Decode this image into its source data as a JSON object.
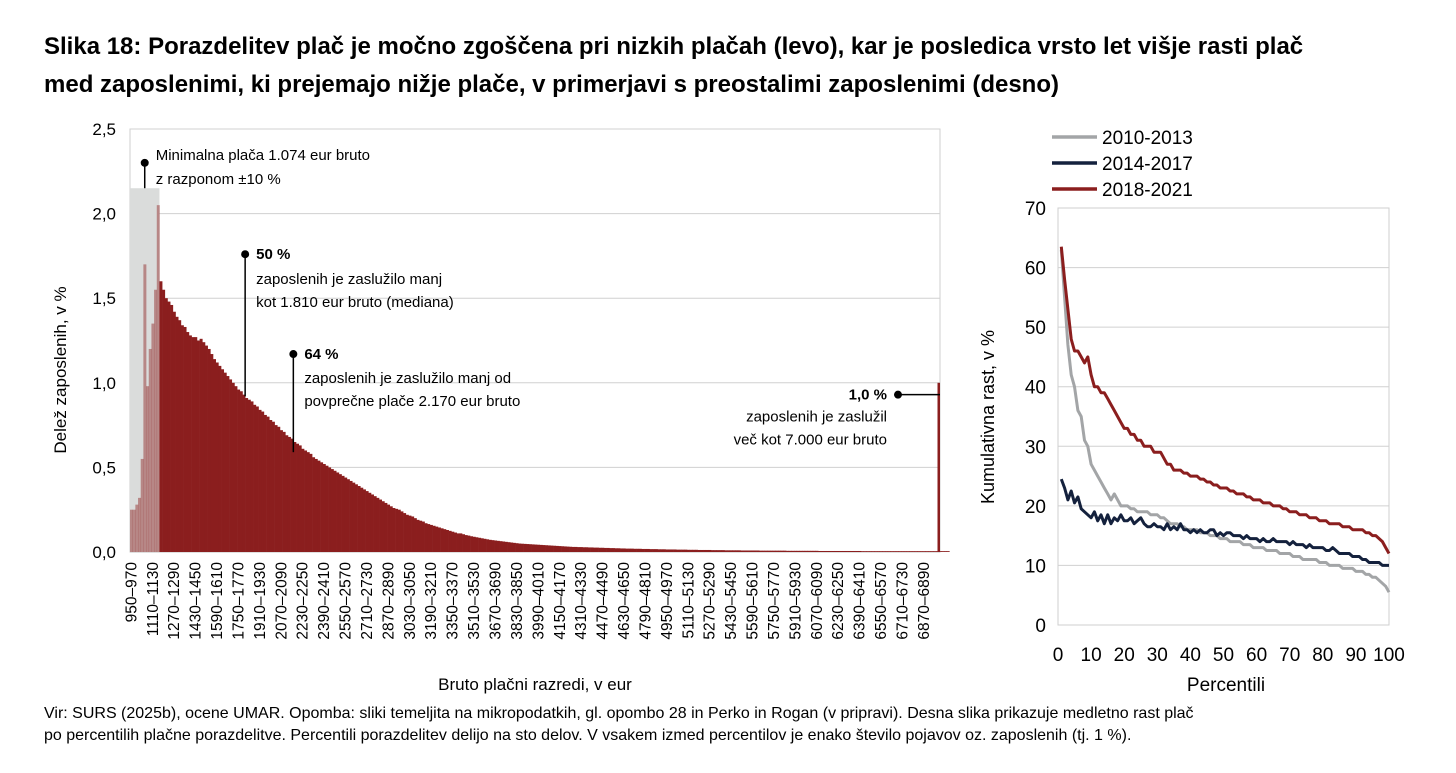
{
  "title": {
    "line1": "Slika 18: Porazdelitev plač je močno zgoščena pri nizkih plačah (levo), kar je posledica vrsto let višje rasti plač",
    "line2": "med zaposlenimi, ki prejemajo nižje plače, v primerjavi s preostalimi zaposlenimi (desno)"
  },
  "footnote": {
    "line1": "Vir: SURS (2025b), ocene UMAR. Opomba: sliki temeljita na mikropodatkih, gl. opombo 28 in Perko in Rogan (v pripravi). Desna slika prikazuje medletno rast plač",
    "line2": "po percentilih plačne porazdelitve. Percentili porazdelitev delijo na sto delov. V vsakem izmed percentilov je enako število pojavov oz. zaposlenih (tj. 1 %)."
  },
  "colors": {
    "bar": "#8b1e1e",
    "minwage_band": "#dadcdb",
    "series": [
      "#a3a5a7",
      "#14213d",
      "#8b1e1e"
    ],
    "grid": "#d0d0d0"
  },
  "chart_data": [
    {
      "type": "bar",
      "title": "",
      "xlabel": "Bruto plačni razredi, v eur",
      "ylabel": "Delež zaposlenih, v %",
      "ylim": [
        0,
        2.5
      ],
      "yticks": [
        "0,0",
        "0,5",
        "1,0",
        "1,5",
        "2,0",
        "2,5"
      ],
      "ytick_values": [
        0,
        0.5,
        1.0,
        1.5,
        2.0,
        2.5
      ],
      "x_start": 950,
      "x_step": 20,
      "x_end": 7000,
      "x_tick_labels": [
        "950–970",
        "1110–1130",
        "1270–1290",
        "1430–1450",
        "1590–1610",
        "1750–1770",
        "1910–1930",
        "2070–2090",
        "2230–2250",
        "2390–2410",
        "2550–2570",
        "2710–2730",
        "2870–2890",
        "3030–3050",
        "3190–3210",
        "3350–3370",
        "3510–3530",
        "3670–3690",
        "3830–3850",
        "3990–4010",
        "4150–4170",
        "4310–4330",
        "4470–4490",
        "4630–4650",
        "4790–4810",
        "4950–4970",
        "5110–5130",
        "5270–5290",
        "5430–5450",
        "5590–5610",
        "5750–5770",
        "5910–5930",
        "6070–6090",
        "6230–6250",
        "6390–6410",
        "6550–6570",
        "6710–6730",
        "6870–6890"
      ],
      "values": [
        0.25,
        0.25,
        0.28,
        0.32,
        0.55,
        1.7,
        0.98,
        1.2,
        1.35,
        1.55,
        2.05,
        1.6,
        1.55,
        1.5,
        1.48,
        1.46,
        1.42,
        1.39,
        1.37,
        1.34,
        1.33,
        1.3,
        1.28,
        1.27,
        1.27,
        1.25,
        1.26,
        1.24,
        1.22,
        1.2,
        1.17,
        1.14,
        1.12,
        1.1,
        1.08,
        1.06,
        1.04,
        1.02,
        1.0,
        0.98,
        0.96,
        0.95,
        0.93,
        0.91,
        0.9,
        0.89,
        0.87,
        0.86,
        0.84,
        0.83,
        0.81,
        0.8,
        0.78,
        0.77,
        0.75,
        0.74,
        0.72,
        0.71,
        0.69,
        0.68,
        0.67,
        0.65,
        0.64,
        0.63,
        0.61,
        0.6,
        0.59,
        0.58,
        0.56,
        0.55,
        0.54,
        0.53,
        0.52,
        0.51,
        0.5,
        0.49,
        0.48,
        0.47,
        0.46,
        0.45,
        0.44,
        0.43,
        0.42,
        0.41,
        0.4,
        0.39,
        0.38,
        0.37,
        0.36,
        0.35,
        0.34,
        0.33,
        0.32,
        0.31,
        0.3,
        0.29,
        0.28,
        0.27,
        0.26,
        0.255,
        0.25,
        0.24,
        0.23,
        0.22,
        0.215,
        0.21,
        0.2,
        0.19,
        0.185,
        0.18,
        0.17,
        0.165,
        0.16,
        0.155,
        0.15,
        0.145,
        0.14,
        0.135,
        0.13,
        0.125,
        0.12,
        0.115,
        0.11,
        0.11,
        0.105,
        0.1,
        0.097,
        0.093,
        0.09,
        0.087,
        0.084,
        0.081,
        0.078,
        0.075,
        0.072,
        0.07,
        0.068,
        0.066,
        0.064,
        0.062,
        0.06,
        0.058,
        0.056,
        0.054,
        0.052,
        0.05,
        0.049,
        0.048,
        0.047,
        0.046,
        0.045,
        0.044,
        0.043,
        0.042,
        0.041,
        0.04,
        0.039,
        0.038,
        0.037,
        0.036,
        0.035,
        0.034,
        0.033,
        0.032,
        0.031,
        0.03,
        0.03,
        0.029,
        0.029,
        0.028,
        0.028,
        0.027,
        0.027,
        0.026,
        0.026,
        0.025,
        0.025,
        0.024,
        0.024,
        0.023,
        0.023,
        0.022,
        0.022,
        0.021,
        0.021,
        0.02,
        0.02,
        0.02,
        0.019,
        0.019,
        0.019,
        0.018,
        0.018,
        0.018,
        0.017,
        0.017,
        0.017,
        0.016,
        0.016,
        0.016,
        0.015,
        0.015,
        0.015,
        0.015,
        0.014,
        0.014,
        0.014,
        0.014,
        0.013,
        0.013,
        0.013,
        0.013,
        0.012,
        0.012,
        0.012,
        0.012,
        0.012,
        0.011,
        0.011,
        0.011,
        0.011,
        0.011,
        0.01,
        0.01,
        0.01,
        0.01,
        0.01,
        0.01,
        0.009,
        0.009,
        0.009,
        0.009,
        0.009,
        0.009,
        0.009,
        0.008,
        0.008,
        0.008,
        0.008,
        0.008,
        0.008,
        0.008,
        0.008,
        0.008,
        0.008,
        0.007,
        0.007,
        0.007,
        0.007,
        0.007,
        0.007,
        0.007,
        0.007,
        0.007,
        0.007,
        0.007,
        0.007,
        0.006,
        0.006,
        0.006,
        0.006,
        0.006,
        0.006,
        0.006,
        0.006,
        0.006,
        0.006,
        0.006,
        0.006,
        0.006,
        0.006,
        0.006,
        0.006,
        0.005,
        0.005,
        0.005,
        0.005,
        0.005,
        0.005,
        0.005,
        0.005,
        0.005,
        0.005,
        0.005,
        0.005,
        0.005,
        0.005,
        0.005,
        0.005,
        0.005,
        0.005,
        0.005,
        0.005,
        0.005,
        0.005,
        0.005,
        0.005,
        0.005,
        0.005,
        0.005,
        0.005,
        0.005,
        0.005,
        0.005,
        0.005,
        0.005
      ],
      "last_bar_label": "7000+",
      "last_bar_value": 1.0,
      "minwage_band": {
        "from": 950,
        "to": 1170,
        "label_line1": "Minimalna plača 1.074 eur bruto",
        "label_line2": "z razponom ±10 %"
      },
      "annotations": [
        {
          "x": 1810,
          "y": 1.76,
          "bold": "50 %",
          "line1": "zaposlenih  je zaslužilo manj",
          "line2": "kot 1.810 eur bruto (mediana)"
        },
        {
          "x": 2170,
          "y": 1.17,
          "bold": "64 %",
          "line1": "zaposlenih je zaslužilo manj od",
          "line2": "povprečne plače 2.170 eur bruto"
        },
        {
          "x": 7000,
          "y": 0.93,
          "bold": "1,0 %",
          "line1": "zaposlenih je zaslužil",
          "line2": "več kot 7.000 eur bruto"
        }
      ]
    },
    {
      "type": "line",
      "title": "",
      "xlabel": "Percentili",
      "ylabel": "Kumulativna rast, v %",
      "xlim": [
        0,
        100
      ],
      "ylim": [
        0,
        70
      ],
      "xticks": [
        "0",
        "10",
        "20",
        "30",
        "40",
        "50",
        "60",
        "70",
        "80",
        "90",
        "100"
      ],
      "xtick_values": [
        0,
        10,
        20,
        30,
        40,
        50,
        60,
        70,
        80,
        90,
        100
      ],
      "yticks": [
        "0",
        "10",
        "20",
        "30",
        "40",
        "50",
        "60",
        "70"
      ],
      "ytick_values": [
        0,
        10,
        20,
        30,
        40,
        50,
        60,
        70
      ],
      "legend_position": "top-left",
      "x": [
        1,
        2,
        3,
        4,
        5,
        6,
        7,
        8,
        9,
        10,
        11,
        12,
        13,
        14,
        15,
        16,
        17,
        18,
        19,
        20,
        21,
        22,
        23,
        24,
        25,
        26,
        27,
        28,
        29,
        30,
        31,
        32,
        33,
        34,
        35,
        36,
        37,
        38,
        39,
        40,
        41,
        42,
        43,
        44,
        45,
        46,
        47,
        48,
        49,
        50,
        51,
        52,
        53,
        54,
        55,
        56,
        57,
        58,
        59,
        60,
        61,
        62,
        63,
        64,
        65,
        66,
        67,
        68,
        69,
        70,
        71,
        72,
        73,
        74,
        75,
        76,
        77,
        78,
        79,
        80,
        81,
        82,
        83,
        84,
        85,
        86,
        87,
        88,
        89,
        90,
        91,
        92,
        93,
        94,
        95,
        96,
        97,
        98,
        99,
        100
      ],
      "series": [
        {
          "name": "2010-2013",
          "values": [
            63,
            55,
            47,
            42,
            40,
            36,
            35,
            31,
            30,
            27,
            26,
            25,
            24,
            23,
            22,
            21,
            22,
            21,
            20,
            20,
            20,
            19.5,
            19.5,
            19,
            19,
            19,
            19,
            18.5,
            18.5,
            18.5,
            18,
            18,
            17.5,
            17,
            17,
            17,
            16.5,
            16.5,
            16,
            16,
            16,
            16,
            15.5,
            15.5,
            15.5,
            15,
            15,
            15,
            14.5,
            14.5,
            14.5,
            14,
            14,
            14,
            14,
            13.5,
            13.5,
            13.5,
            13,
            13,
            13,
            13,
            12.5,
            12.5,
            12.5,
            12.5,
            12,
            12,
            12,
            12,
            11.5,
            11.5,
            11.5,
            11,
            11,
            11,
            11,
            11,
            10.5,
            10.5,
            10.5,
            10,
            10,
            10,
            10,
            9.5,
            9.5,
            9.5,
            9.5,
            9,
            9,
            9,
            8.5,
            8.5,
            8,
            8,
            7.5,
            7,
            6.5,
            5.5
          ]
        },
        {
          "name": "2014-2017",
          "values": [
            24.5,
            23,
            21,
            22.5,
            20.5,
            21.5,
            19.5,
            19,
            18.5,
            18,
            19,
            17.5,
            18.5,
            17,
            18.5,
            17,
            18,
            17.5,
            18.5,
            17.5,
            17.5,
            18,
            17,
            17.5,
            18,
            17,
            16.5,
            16.5,
            17,
            16.5,
            16.5,
            16,
            17,
            16,
            16.5,
            16,
            17,
            16,
            16,
            15.5,
            16,
            15.5,
            16,
            15.5,
            15.5,
            16,
            16,
            15,
            15.5,
            15,
            15.5,
            15.5,
            15,
            15,
            15,
            14.5,
            15,
            14.5,
            14.5,
            14.5,
            14,
            14.5,
            14,
            14,
            14.5,
            14,
            14,
            14,
            14,
            13.5,
            14,
            13.5,
            13.5,
            13.5,
            13,
            13.5,
            13,
            13,
            13,
            13,
            12.5,
            12.5,
            13,
            12.5,
            12,
            12,
            12,
            12,
            11.5,
            11.5,
            11.5,
            11,
            11,
            10.5,
            10.5,
            10.5,
            10.5,
            10,
            10,
            10
          ]
        },
        {
          "name": "2018-2021",
          "values": [
            63.5,
            58,
            53,
            48,
            46,
            46,
            45,
            44,
            45,
            42,
            40,
            40,
            39,
            39,
            38,
            37,
            36,
            35,
            34,
            33,
            33,
            32,
            32,
            31,
            31,
            30,
            30,
            30,
            29,
            29,
            29,
            28,
            27,
            27,
            26,
            26,
            26,
            25.5,
            25.5,
            25,
            25,
            25,
            24.5,
            24.5,
            24,
            24,
            23.5,
            23.5,
            23,
            23,
            23,
            22.5,
            22.5,
            22,
            22,
            22,
            21.5,
            21.5,
            21,
            21,
            21,
            20.5,
            20.5,
            20.5,
            20,
            20,
            20,
            19.5,
            19.5,
            19,
            19,
            19,
            18.5,
            18.5,
            18.5,
            18,
            18,
            18,
            17.5,
            17.5,
            17.5,
            17,
            17,
            17,
            17,
            16.5,
            16.5,
            16.5,
            16,
            16,
            16,
            16,
            15.5,
            15.5,
            15,
            15,
            14.5,
            14,
            13,
            12
          ]
        }
      ]
    }
  ]
}
